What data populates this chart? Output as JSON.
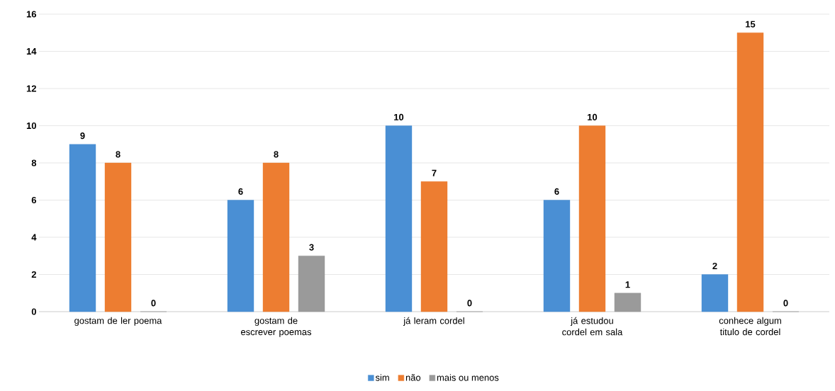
{
  "chart_data": {
    "type": "bar",
    "categories": [
      "gostam de ler poema",
      "gostam de escrever poemas",
      "já leram cordel",
      "já estudou cordel em sala",
      "conhece algum titulo de cordel"
    ],
    "series": [
      {
        "name": "sim",
        "color": "#4a8fd4",
        "values": [
          9,
          6,
          10,
          6,
          2
        ]
      },
      {
        "name": "não",
        "color": "#ed7d31",
        "values": [
          8,
          8,
          7,
          10,
          15
        ]
      },
      {
        "name": "mais ou menos",
        "color": "#9a9a9a",
        "values": [
          0,
          3,
          0,
          1,
          0
        ]
      }
    ],
    "ylim": [
      0,
      16
    ],
    "yticks": [
      0,
      2,
      4,
      6,
      8,
      10,
      12,
      14,
      16
    ],
    "grid": "y",
    "legend": "bottom",
    "data_labels": true
  }
}
